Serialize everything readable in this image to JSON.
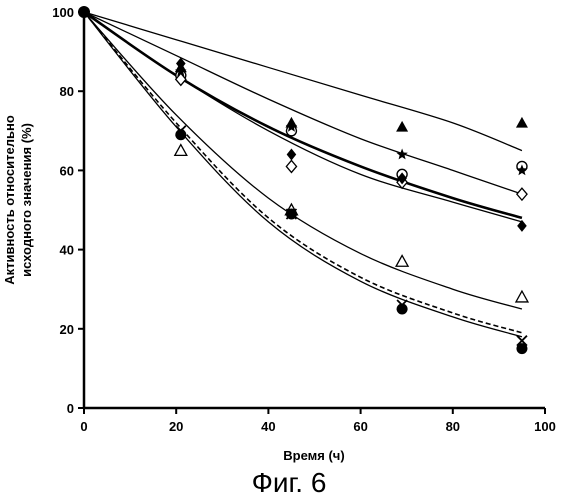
{
  "chart_data": {
    "type": "scatter",
    "title": "",
    "xlabel": "Время (ч)",
    "ylabel_lines": [
      "Активность относительно",
      "исходного значения (%)"
    ],
    "caption": "Фиг. 6",
    "xlim": [
      0,
      100
    ],
    "ylim": [
      0,
      100
    ],
    "xticks": [
      0,
      20,
      40,
      60,
      80,
      100
    ],
    "yticks": [
      0,
      20,
      40,
      60,
      80,
      100
    ],
    "grid": false,
    "legend": "none",
    "series": [
      {
        "marker": "filled-triangle",
        "x": [
          0,
          21,
          45,
          69,
          95
        ],
        "y": [
          100,
          86,
          72,
          71,
          72
        ]
      },
      {
        "marker": "open-circle",
        "x": [
          0,
          21,
          45,
          69,
          95
        ],
        "y": [
          100,
          84,
          70,
          59,
          61
        ]
      },
      {
        "marker": "star",
        "x": [
          0,
          21,
          45,
          69,
          95
        ],
        "y": [
          100,
          85,
          71,
          64,
          60
        ]
      },
      {
        "marker": "open-diamond",
        "x": [
          0,
          21,
          45,
          69,
          95
        ],
        "y": [
          100,
          83,
          61,
          57,
          54
        ]
      },
      {
        "marker": "filled-diamond",
        "x": [
          0,
          21,
          45,
          69,
          95
        ],
        "y": [
          100,
          87,
          64,
          58,
          46
        ]
      },
      {
        "marker": "open-triangle",
        "x": [
          0,
          21,
          45,
          69,
          95
        ],
        "y": [
          100,
          65,
          50,
          37,
          28
        ]
      },
      {
        "marker": "x-mark",
        "x": [
          0,
          21,
          45,
          69,
          95
        ],
        "y": [
          100,
          70,
          49,
          26,
          17
        ]
      },
      {
        "marker": "filled-circle",
        "x": [
          0,
          21,
          45,
          69,
          95
        ],
        "y": [
          100,
          69,
          49,
          25,
          15
        ]
      }
    ],
    "fit_curves": [
      {
        "style": "solid-thin",
        "x": [
          0,
          20,
          40,
          60,
          80,
          95
        ],
        "y": [
          100,
          93,
          86,
          79,
          72,
          65
        ]
      },
      {
        "style": "solid-thin",
        "x": [
          0,
          20,
          40,
          60,
          80,
          95
        ],
        "y": [
          100,
          89,
          78,
          68,
          60,
          54
        ]
      },
      {
        "style": "solid-bold",
        "x": [
          0,
          20,
          40,
          60,
          80,
          95
        ],
        "y": [
          100,
          84,
          71,
          61,
          53,
          48
        ]
      },
      {
        "style": "solid-thin",
        "x": [
          0,
          20,
          40,
          60,
          80,
          95
        ],
        "y": [
          100,
          84,
          70,
          59,
          52,
          47
        ]
      },
      {
        "style": "solid-thin",
        "x": [
          0,
          20,
          40,
          60,
          80,
          95
        ],
        "y": [
          100,
          74,
          53,
          39,
          30,
          25
        ]
      },
      {
        "style": "solid-thin",
        "x": [
          0,
          20,
          40,
          60,
          80,
          95
        ],
        "y": [
          100,
          71,
          47,
          32,
          23,
          18
        ]
      },
      {
        "style": "dashed",
        "x": [
          0,
          20,
          40,
          60,
          80,
          95
        ],
        "y": [
          100,
          72,
          48,
          33,
          24,
          19
        ]
      }
    ]
  }
}
